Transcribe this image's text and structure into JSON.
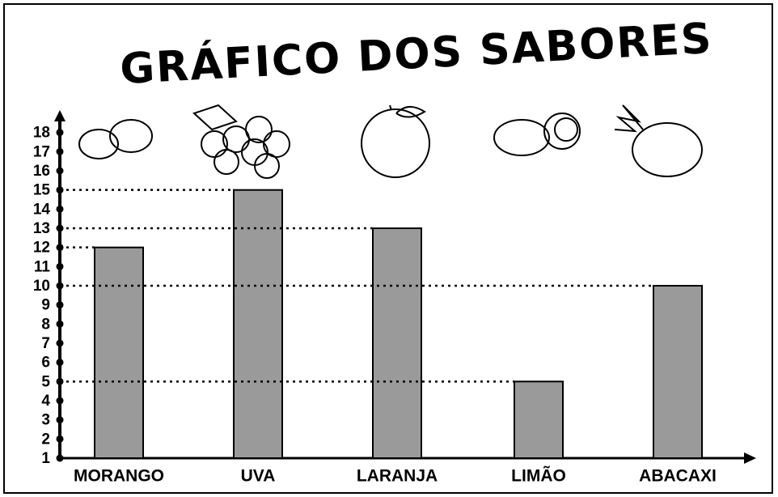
{
  "chart_data": {
    "type": "bar",
    "title": "GRÁFICO DOS SABORES",
    "categories": [
      "MORANGO",
      "UVA",
      "LARANJA",
      "LIMÃO",
      "ABACAXI"
    ],
    "values": [
      12,
      15,
      13,
      5,
      10
    ],
    "color": "#9a9a9a",
    "ylim": [
      1,
      19
    ],
    "yticks": [
      1,
      2,
      3,
      4,
      5,
      6,
      7,
      8,
      9,
      10,
      11,
      12,
      13,
      14,
      15,
      16,
      17,
      18
    ],
    "grid": false
  }
}
